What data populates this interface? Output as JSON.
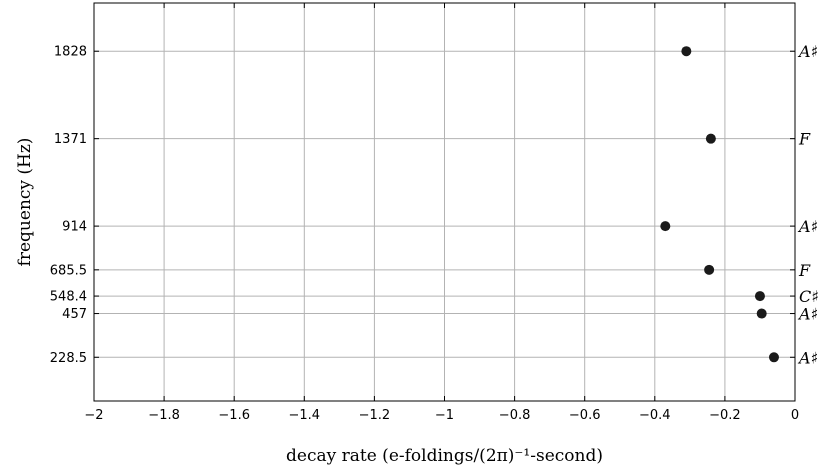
{
  "chart_data": {
    "type": "scatter",
    "xlabel": "decay rate (e-foldings/(2π)⁻¹-second)",
    "ylabel": "frequency (Hz)",
    "xlim": [
      -2,
      0
    ],
    "ylim": [
      0,
      2080
    ],
    "grid": true,
    "x_ticks": [
      -2,
      -1.8,
      -1.6,
      -1.4,
      -1.2,
      -1,
      -0.8,
      -0.6,
      -0.4,
      -0.2,
      0
    ],
    "x_tick_labels": [
      "−2",
      "−1.8",
      "−1.6",
      "−1.4",
      "−1.2",
      "−1",
      "−0.8",
      "−0.6",
      "−0.4",
      "−0.2",
      "0"
    ],
    "y_ticks": [
      228.5,
      457,
      548.4,
      685.5,
      914,
      1371,
      1828
    ],
    "y_tick_labels": [
      "228.5",
      "457",
      "548.4",
      "685.5",
      "914",
      "1371",
      "1828"
    ],
    "note_names": [
      "A♯",
      "A♯",
      "C♯",
      "F",
      "A♯",
      "F",
      "A♯"
    ],
    "points": [
      {
        "x": -0.06,
        "y": 228.5
      },
      {
        "x": -0.095,
        "y": 457
      },
      {
        "x": -0.1,
        "y": 548.4
      },
      {
        "x": -0.245,
        "y": 685.5
      },
      {
        "x": -0.37,
        "y": 914
      },
      {
        "x": -0.24,
        "y": 1371
      },
      {
        "x": -0.31,
        "y": 1828
      }
    ]
  }
}
